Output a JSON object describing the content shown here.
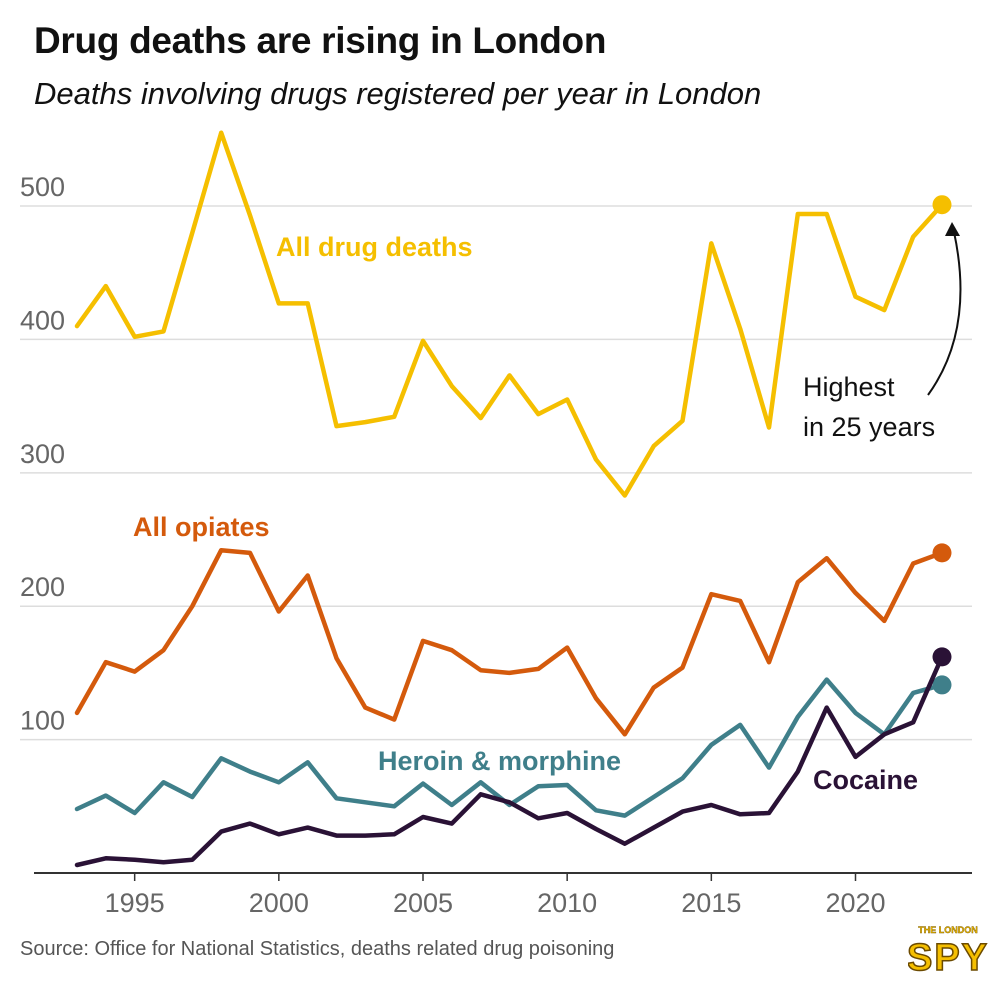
{
  "header": {
    "title": "Drug deaths are rising in London",
    "subtitle": "Deaths involving drugs registered per year in London"
  },
  "footer": {
    "source": "Source: Office for National Statistics, deaths related drug poisoning",
    "logo_top": "THE LONDON",
    "logo_bottom": "SPY"
  },
  "annotation": {
    "line1": "Highest",
    "line2": "in 25 years"
  },
  "colors": {
    "all_drugs": "#f5bf00",
    "opiates": "#d45a0c",
    "heroin": "#3f7f8a",
    "cocaine": "#2a1236",
    "grid": "#dddddd",
    "axis": "#333333",
    "tick_text": "#666666"
  },
  "chart_data": {
    "type": "line",
    "title": "Drug deaths are rising in London",
    "subtitle": "Deaths involving drugs registered per year in London",
    "xlabel": "",
    "ylabel": "",
    "xlim": [
      1993,
      2023
    ],
    "ylim": [
      0,
      560
    ],
    "grid": true,
    "x_ticks": [
      1995,
      2000,
      2005,
      2010,
      2015,
      2020
    ],
    "y_ticks": [
      100,
      200,
      300,
      400,
      500
    ],
    "x": [
      1993,
      1994,
      1995,
      1996,
      1997,
      1998,
      1999,
      2000,
      2001,
      2002,
      2003,
      2004,
      2005,
      2006,
      2007,
      2008,
      2009,
      2010,
      2011,
      2012,
      2013,
      2014,
      2015,
      2016,
      2017,
      2018,
      2019,
      2020,
      2021,
      2022,
      2023
    ],
    "series": [
      {
        "name": "All drug deaths",
        "key": "all_drugs",
        "values": [
          410,
          440,
          402,
          406,
          480,
          555,
          493,
          427,
          427,
          335,
          338,
          342,
          399,
          365,
          341,
          373,
          344,
          355,
          310,
          283,
          320,
          339,
          472,
          408,
          334,
          494,
          494,
          432,
          422,
          477,
          501
        ]
      },
      {
        "name": "All opiates",
        "key": "opiates",
        "values": [
          120,
          158,
          151,
          167,
          200,
          242,
          240,
          196,
          223,
          161,
          124,
          115,
          174,
          167,
          152,
          150,
          153,
          169,
          131,
          104,
          139,
          154,
          209,
          204,
          158,
          218,
          236,
          210,
          189,
          232,
          240
        ]
      },
      {
        "name": "Heroin & morphine",
        "key": "heroin",
        "values": [
          48,
          58,
          45,
          68,
          57,
          86,
          76,
          68,
          83,
          56,
          53,
          50,
          67,
          51,
          68,
          51,
          65,
          66,
          47,
          43,
          57,
          71,
          96,
          111,
          79,
          117,
          145,
          120,
          104,
          135,
          141
        ]
      },
      {
        "name": "Cocaine",
        "key": "cocaine",
        "values": [
          6,
          11,
          10,
          8,
          10,
          31,
          37,
          29,
          34,
          28,
          28,
          29,
          42,
          37,
          59,
          53,
          41,
          45,
          33,
          22,
          34,
          46,
          51,
          44,
          45,
          76,
          124,
          87,
          104,
          113,
          162
        ]
      }
    ]
  }
}
